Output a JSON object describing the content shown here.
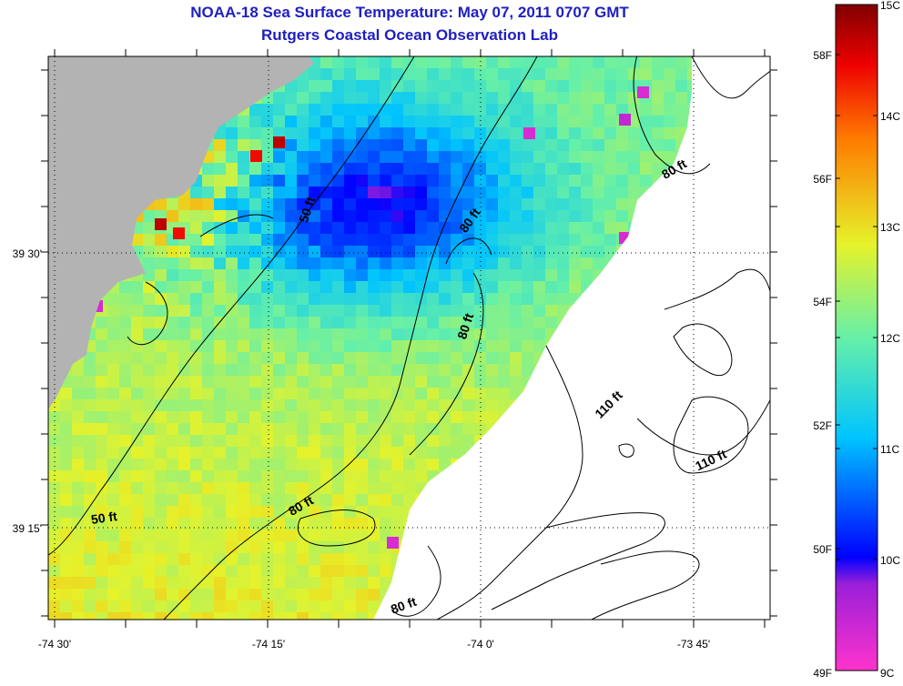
{
  "header": {
    "title": "NOAA-18 Sea Surface Temperature:  May 07, 2011 0707 GMT",
    "subtitle": "Rutgers Coastal Ocean Observation Lab"
  },
  "map": {
    "lon_labels": [
      "-74 30'",
      "-74 15'",
      "-74 0'",
      "-73 45'"
    ],
    "lat_labels": [
      "39 30'",
      "39 15'"
    ],
    "depth_labels": [
      "50 ft",
      "50 ft",
      "80 ft",
      "80 ft",
      "80 ft",
      "80 ft",
      "80 ft",
      "110 ft",
      "110 ft"
    ],
    "colors": {
      "land": "#b3b3b3",
      "no_data": "#ffffff",
      "grid": "#000000"
    }
  },
  "colorbar": {
    "celsius_labels": [
      "15C",
      "14C",
      "13C",
      "12C",
      "11C",
      "10C",
      "9C"
    ],
    "fahrenheit_labels": [
      "58F",
      "56F",
      "54F",
      "52F",
      "50F",
      "49F"
    ],
    "min_c": 9,
    "max_c": 15
  }
}
